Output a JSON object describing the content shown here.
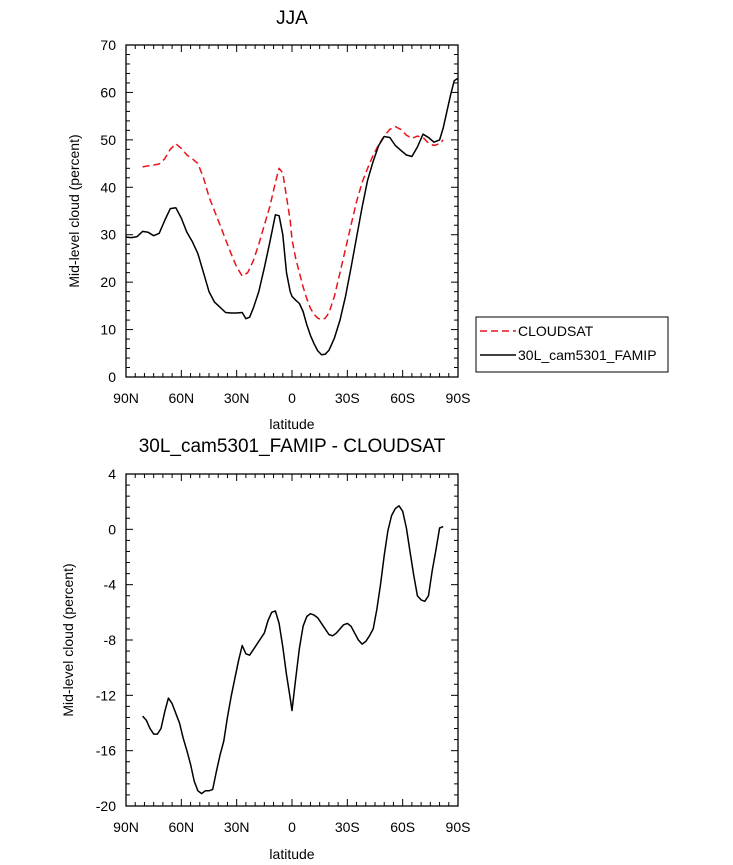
{
  "chart_data": [
    {
      "type": "line",
      "title": "JJA",
      "xlabel": "latitude",
      "ylabel": "Mid-level cloud (percent)",
      "xlim": [
        90,
        -90
      ],
      "ylim": [
        0,
        70
      ],
      "x_ticks": [
        90,
        60,
        30,
        0,
        -30,
        -60,
        -90
      ],
      "x_tick_labels": [
        "90N",
        "60N",
        "30N",
        "0",
        "30S",
        "60S",
        "90S"
      ],
      "y_ticks": [
        0,
        10,
        20,
        30,
        40,
        50,
        60,
        70
      ],
      "y_tick_labels": [
        "0",
        "10",
        "20",
        "30",
        "40",
        "50",
        "60",
        "70"
      ],
      "grid": false,
      "legend_placement": "right",
      "series": [
        {
          "name": "CLOUDSAT",
          "color": "#e8141c",
          "dash": "dashed",
          "x": [
            81,
            78,
            75,
            72,
            69,
            66,
            63,
            60,
            57,
            54,
            51,
            48,
            45,
            42,
            39,
            36,
            33,
            30,
            27,
            24,
            21,
            18,
            15,
            12,
            9,
            7,
            5,
            3,
            1,
            0,
            -2,
            -4,
            -6,
            -8,
            -10,
            -12,
            -14,
            -16,
            -18,
            -20,
            -23,
            -26,
            -29,
            -32,
            -35,
            -38,
            -41,
            -44,
            -47,
            -50,
            -53,
            -56,
            -59,
            -62,
            -65,
            -68,
            -71,
            -74,
            -77,
            -80,
            -82
          ],
          "y": [
            44.3,
            44.5,
            44.7,
            44.9,
            46.0,
            48.0,
            49.2,
            48.2,
            46.8,
            46.0,
            45.0,
            42.0,
            38.0,
            35.0,
            32.0,
            29.0,
            26.0,
            23.2,
            21.3,
            22.0,
            24.5,
            28.0,
            32.0,
            36.0,
            41.0,
            44.0,
            43.0,
            38.0,
            33.0,
            29.0,
            25.0,
            22.0,
            19.0,
            16.5,
            14.5,
            13.2,
            12.4,
            12.1,
            12.4,
            13.5,
            17.0,
            22.0,
            27.0,
            32.0,
            37.0,
            41.0,
            44.0,
            46.8,
            49.0,
            50.8,
            52.2,
            52.8,
            52.2,
            51.0,
            50.3,
            50.8,
            50.5,
            49.3,
            48.8,
            49.2,
            50.0
          ]
        },
        {
          "name": "30L_cam5301_FAMIP",
          "color": "#000000",
          "dash": "solid",
          "x": [
            90,
            87,
            84,
            81,
            78,
            75,
            72,
            69,
            66,
            63,
            60,
            57,
            54,
            51,
            48,
            45,
            42,
            39,
            36,
            33,
            30,
            27,
            25,
            23,
            21,
            18,
            15,
            12,
            9,
            7,
            5,
            3,
            1,
            0,
            -2,
            -4,
            -6,
            -8,
            -10,
            -12,
            -14,
            -16,
            -18,
            -20,
            -23,
            -26,
            -29,
            -32,
            -35,
            -38,
            -41,
            -44,
            -47,
            -50,
            -53,
            -56,
            -59,
            -62,
            -65,
            -68,
            -71,
            -74,
            -77,
            -80,
            -82,
            -84,
            -86,
            -88,
            -90
          ],
          "y": [
            29.5,
            29.4,
            29.6,
            30.7,
            30.5,
            29.8,
            30.3,
            33.0,
            35.5,
            35.7,
            33.5,
            30.5,
            28.5,
            26.0,
            22.0,
            18.0,
            15.8,
            14.7,
            13.6,
            13.5,
            13.5,
            13.6,
            12.3,
            12.6,
            14.5,
            18.0,
            23.0,
            28.5,
            34.2,
            34.0,
            30.0,
            22.0,
            18.0,
            17.0,
            16.2,
            15.5,
            13.8,
            11.0,
            8.8,
            7.0,
            5.5,
            4.7,
            4.8,
            5.6,
            8.2,
            12.0,
            17.0,
            23.0,
            29.5,
            35.8,
            41.5,
            45.5,
            48.8,
            50.7,
            50.5,
            48.8,
            47.8,
            46.8,
            46.5,
            48.5,
            51.2,
            50.5,
            49.5,
            50.0,
            52.5,
            56.0,
            59.5,
            62.5,
            63.0
          ]
        }
      ]
    },
    {
      "type": "line",
      "title": "30L_cam5301_FAMIP - CLOUDSAT",
      "xlabel": "latitude",
      "ylabel": "Mid-level cloud (percent)",
      "xlim": [
        90,
        -90
      ],
      "ylim": [
        -20,
        4
      ],
      "x_ticks": [
        90,
        60,
        30,
        0,
        -30,
        -60,
        -90
      ],
      "x_tick_labels": [
        "90N",
        "60N",
        "30N",
        "0",
        "30S",
        "60S",
        "90S"
      ],
      "y_ticks": [
        -20,
        -16,
        -12,
        -8,
        -4,
        0,
        4
      ],
      "y_tick_labels": [
        "-20",
        "-16",
        "-12",
        "-8",
        "-4",
        "0",
        "4"
      ],
      "grid": false,
      "series": [
        {
          "color": "#000000",
          "dash": "solid",
          "x": [
            81,
            79,
            77,
            75,
            73,
            71,
            69,
            67,
            65,
            63,
            61,
            59,
            57,
            55,
            53,
            51,
            49,
            47,
            45,
            43,
            41,
            39,
            37,
            35,
            33,
            31,
            29,
            27,
            25,
            23,
            21,
            19,
            17,
            15,
            13,
            11,
            9,
            7,
            5,
            3,
            1,
            0,
            -2,
            -4,
            -6,
            -8,
            -10,
            -12,
            -14,
            -16,
            -18,
            -20,
            -22,
            -24,
            -26,
            -28,
            -30,
            -32,
            -34,
            -36,
            -38,
            -40,
            -42,
            -44,
            -46,
            -48,
            -50,
            -52,
            -54,
            -56,
            -58,
            -60,
            -62,
            -64,
            -66,
            -68,
            -70,
            -72,
            -74,
            -76,
            -78,
            -80,
            -82
          ],
          "y": [
            -13.5,
            -13.8,
            -14.4,
            -14.8,
            -14.8,
            -14.4,
            -13.2,
            -12.2,
            -12.6,
            -13.3,
            -14.0,
            -15.1,
            -16.0,
            -17.0,
            -18.2,
            -18.9,
            -19.1,
            -18.9,
            -18.9,
            -18.8,
            -17.5,
            -16.3,
            -15.3,
            -13.6,
            -12.1,
            -10.8,
            -9.5,
            -8.4,
            -9.0,
            -9.1,
            -8.7,
            -8.3,
            -7.9,
            -7.5,
            -6.6,
            -6.0,
            -5.9,
            -6.8,
            -8.5,
            -10.5,
            -12.2,
            -13.1,
            -10.8,
            -8.6,
            -7.0,
            -6.3,
            -6.1,
            -6.2,
            -6.4,
            -6.8,
            -7.2,
            -7.6,
            -7.7,
            -7.5,
            -7.2,
            -6.9,
            -6.8,
            -7.0,
            -7.5,
            -8.0,
            -8.3,
            -8.1,
            -7.7,
            -7.2,
            -5.8,
            -4.0,
            -1.9,
            -0.1,
            1.0,
            1.5,
            1.7,
            1.3,
            0.1,
            -1.6,
            -3.3,
            -4.8,
            -5.1,
            -5.2,
            -4.8,
            -3.0,
            -1.5,
            0.1,
            0.2
          ]
        }
      ]
    }
  ]
}
